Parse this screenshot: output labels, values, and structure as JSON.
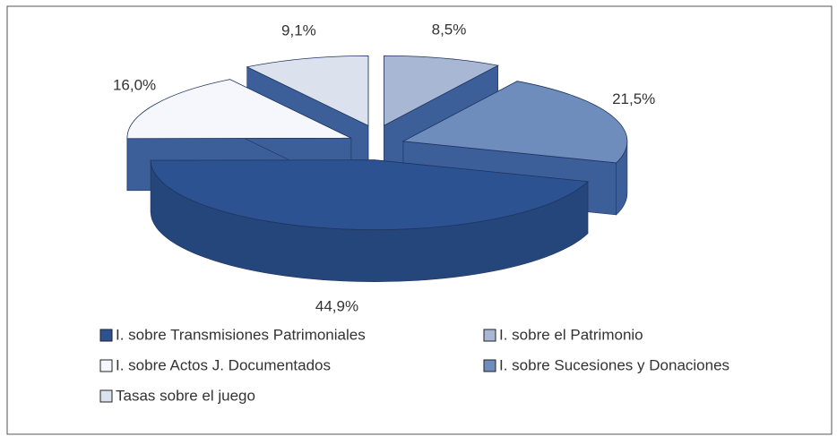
{
  "chart_data": {
    "type": "pie3d",
    "categories": [
      "I. sobre Transmisiones Patrimoniales",
      "I. sobre el Patrimonio",
      "I. sobre Actos J. Documentados",
      "I. sobre Sucesiones y Donaciones",
      "Tasas sobre el juego"
    ],
    "values": [
      44.9,
      8.5,
      16.0,
      21.5,
      9.1
    ],
    "value_labels": [
      "44,9%",
      "8,5%",
      "16,0%",
      "21,5%",
      "9,1%"
    ],
    "colors": [
      "#2c5291",
      "#a8b7d3",
      "#f5f7fc",
      "#6e8dbd",
      "#dce2ed"
    ],
    "legend": "bottom"
  }
}
